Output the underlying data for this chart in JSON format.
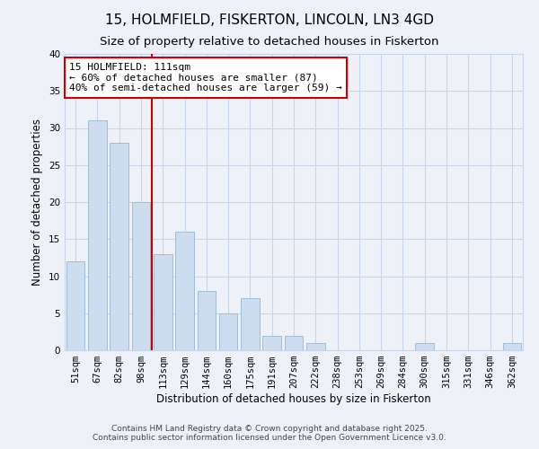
{
  "title": "15, HOLMFIELD, FISKERTON, LINCOLN, LN3 4GD",
  "subtitle": "Size of property relative to detached houses in Fiskerton",
  "xlabel": "Distribution of detached houses by size in Fiskerton",
  "ylabel": "Number of detached properties",
  "categories": [
    "51sqm",
    "67sqm",
    "82sqm",
    "98sqm",
    "113sqm",
    "129sqm",
    "144sqm",
    "160sqm",
    "175sqm",
    "191sqm",
    "207sqm",
    "222sqm",
    "238sqm",
    "253sqm",
    "269sqm",
    "284sqm",
    "300sqm",
    "315sqm",
    "331sqm",
    "346sqm",
    "362sqm"
  ],
  "values": [
    12,
    31,
    28,
    20,
    13,
    16,
    8,
    5,
    7,
    2,
    2,
    1,
    0,
    0,
    0,
    0,
    1,
    0,
    0,
    0,
    1
  ],
  "bar_color": "#ccddf0",
  "bar_edge_color": "#a0bcd8",
  "vline_x_index": 4,
  "vline_color": "#cc0000",
  "annotation_text": "15 HOLMFIELD: 111sqm\n← 60% of detached houses are smaller (87)\n40% of semi-detached houses are larger (59) →",
  "annotation_box_edge_color": "#cc0000",
  "annotation_box_face_color": "#ffffff",
  "ylim": [
    0,
    40
  ],
  "footnote1": "Contains HM Land Registry data © Crown copyright and database right 2025.",
  "footnote2": "Contains public sector information licensed under the Open Government Licence v3.0.",
  "background_color": "#eef2f8",
  "plot_bg_color": "#eef2f8",
  "grid_color": "#c8d4e8",
  "title_fontsize": 11,
  "subtitle_fontsize": 9.5,
  "axis_label_fontsize": 8.5,
  "tick_fontsize": 7.5,
  "annotation_fontsize": 8,
  "footnote_fontsize": 6.5
}
